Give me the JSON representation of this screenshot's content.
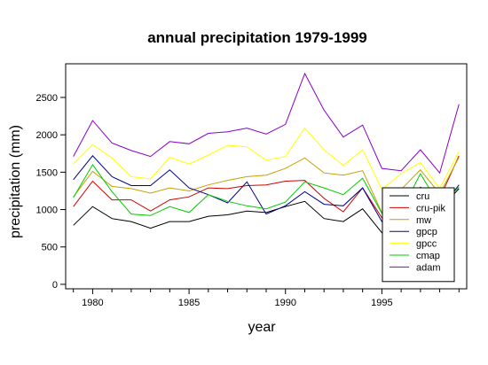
{
  "chart_data": {
    "type": "line",
    "title": "annual precipitation 1979-1999",
    "xlabel": "year",
    "ylabel": "precipitation (mm)",
    "xlim": [
      1978.6,
      1999.4
    ],
    "ylim": [
      -60,
      2950
    ],
    "x_ticks": [
      1980,
      1985,
      1990,
      1995
    ],
    "y_ticks": [
      0,
      500,
      1000,
      1500,
      2000,
      2500
    ],
    "x_tick_labels": [
      "1980",
      "1985",
      "1990",
      "1995"
    ],
    "y_tick_labels": [
      "0",
      "500",
      "1000",
      "1500",
      "2000",
      "2500"
    ],
    "grid": false,
    "legend_position": "bottom-right",
    "x": [
      1979,
      1980,
      1981,
      1982,
      1983,
      1984,
      1985,
      1986,
      1987,
      1988,
      1989,
      1990,
      1991,
      1992,
      1993,
      1994,
      1995,
      1996,
      1997,
      1998,
      1999
    ],
    "series": [
      {
        "name": "cru",
        "color": "#000000",
        "values": [
          790,
          1040,
          880,
          840,
          750,
          840,
          840,
          910,
          930,
          980,
          960,
          1040,
          1110,
          880,
          840,
          1010,
          690,
          780,
          900,
          1000,
          1280
        ]
      },
      {
        "name": "cru-pik",
        "color": "#cc0000",
        "values": [
          1040,
          1380,
          1130,
          1130,
          980,
          1130,
          1170,
          1290,
          1280,
          1320,
          1330,
          1380,
          1390,
          1150,
          970,
          1290,
          890,
          1080,
          1300,
          1150,
          1720
        ]
      },
      {
        "name": "mw",
        "color": "#c8a000",
        "values": [
          1170,
          1510,
          1310,
          1280,
          1220,
          1290,
          1250,
          1330,
          1390,
          1440,
          1460,
          1550,
          1690,
          1490,
          1460,
          1520,
          960,
          1270,
          1530,
          1210,
          1700
        ]
      },
      {
        "name": "gpcp",
        "color": "#000088",
        "values": [
          1400,
          1720,
          1440,
          1320,
          1320,
          1530,
          1290,
          1200,
          1090,
          1370,
          940,
          1050,
          1240,
          1070,
          1050,
          1290,
          840,
          950,
          1150,
          1000,
          1330
        ]
      },
      {
        "name": "gpcc",
        "color": "#ffff00",
        "values": [
          1610,
          1870,
          1690,
          1440,
          1410,
          1700,
          1610,
          1730,
          1860,
          1840,
          1660,
          1710,
          2090,
          1800,
          1590,
          1800,
          1270,
          1480,
          1630,
          1280,
          1780
        ]
      },
      {
        "name": "cmap",
        "color": "#00cc00",
        "values": [
          1160,
          1600,
          1240,
          940,
          920,
          1040,
          960,
          1200,
          1110,
          1050,
          1010,
          1100,
          1370,
          1290,
          1200,
          1420,
          950,
          970,
          1480,
          1050,
          1300
        ]
      },
      {
        "name": "adam",
        "color": "#8800cc",
        "values": [
          1710,
          2190,
          1890,
          1790,
          1710,
          1910,
          1880,
          2020,
          2040,
          2090,
          2010,
          2140,
          2820,
          2330,
          1970,
          2130,
          1550,
          1520,
          1800,
          1490,
          2410
        ]
      }
    ]
  }
}
